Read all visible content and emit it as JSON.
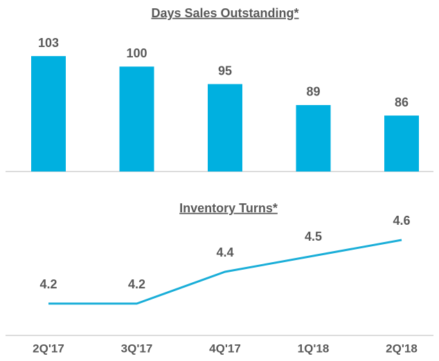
{
  "chart_data": [
    {
      "type": "bar",
      "title": "Days Sales Outstanding*",
      "values": [
        103,
        100,
        95,
        89,
        86
      ],
      "color": "#00b0e0",
      "ylim": [
        70,
        105
      ]
    },
    {
      "type": "line",
      "title": "Inventory Turns*",
      "categories": [
        "2Q'17",
        "3Q'17",
        "4Q'17",
        "1Q'18",
        "2Q'18"
      ],
      "values": [
        4.2,
        4.2,
        4.4,
        4.5,
        4.6
      ],
      "color": "#1aaed8",
      "ylim": [
        4.0,
        4.8
      ]
    }
  ]
}
